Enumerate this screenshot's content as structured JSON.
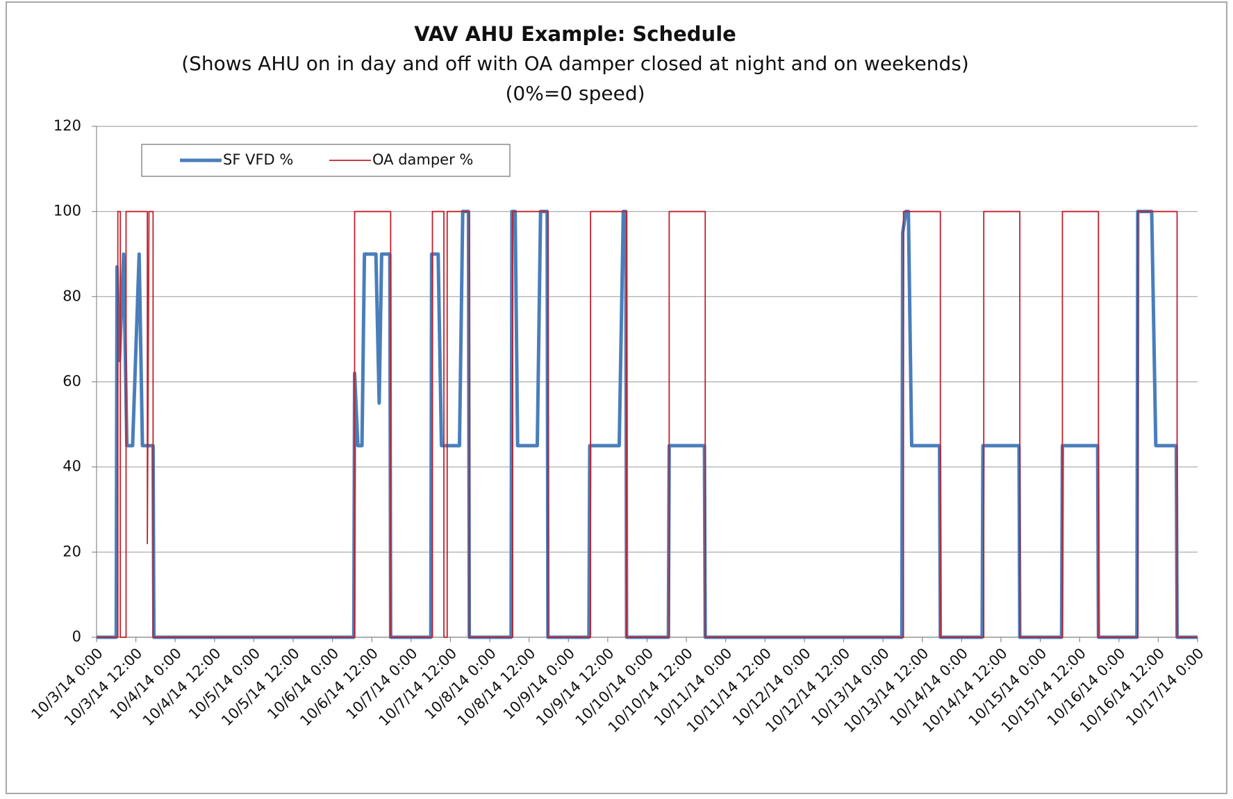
{
  "chart_data": {
    "type": "line",
    "title": "VAV AHU Example: Schedule",
    "subtitle": "(Shows AHU on in day and off with OA damper closed at night and on weekends)",
    "subtitle2": "(0%=0 speed)",
    "xlim": [
      "10/3/14 0:00",
      "10/17/14 0:00"
    ],
    "xticks": [
      "10/3/14 0:00",
      "10/3/14 12:00",
      "10/4/14 0:00",
      "10/4/14 12:00",
      "10/5/14 0:00",
      "10/5/14 12:00",
      "10/6/14 0:00",
      "10/6/14 12:00",
      "10/7/14 0:00",
      "10/7/14 12:00",
      "10/8/14 0:00",
      "10/8/14 12:00",
      "10/9/14 0:00",
      "10/9/14 12:00",
      "10/10/14 0:00",
      "10/10/14 12:00",
      "10/11/14 0:00",
      "10/11/14 12:00",
      "10/12/14 0:00",
      "10/12/14 12:00",
      "10/13/14 0:00",
      "10/13/14 12:00",
      "10/14/14 0:00",
      "10/14/14 12:00",
      "10/15/14 0:00",
      "10/15/14 12:00",
      "10/16/14 0:00",
      "10/16/14 12:00",
      "10/17/14 0:00"
    ],
    "ylim": [
      0,
      120
    ],
    "yticks": [
      0,
      20,
      40,
      60,
      80,
      100,
      120
    ],
    "grid": true,
    "legend": "top-left",
    "series": [
      {
        "name": "SF VFD %",
        "color": "#4a7ebb",
        "x": [
          "10/3/14 0:00",
          "10/3/14 6:00",
          "10/3/14 6:15",
          "10/3/14 7:00",
          "10/3/14 8:15",
          "10/3/14 9:15",
          "10/3/14 11:00",
          "10/3/14 13:00",
          "10/3/14 14:00",
          "10/3/14 17:15",
          "10/3/14 17:30",
          "10/6/14 6:30",
          "10/6/14 6:45",
          "10/6/14 7:45",
          "10/6/14 9:00",
          "10/6/14 9:45",
          "10/6/14 13:15",
          "10/6/14 14:15",
          "10/6/14 15:00",
          "10/6/14 17:30",
          "10/6/14 17:45",
          "10/7/14 6:00",
          "10/7/14 6:15",
          "10/7/14 8:15",
          "10/7/14 9:15",
          "10/7/14 14:45",
          "10/7/14 15:45",
          "10/7/14 17:30",
          "10/7/14 17:45",
          "10/8/14 6:30",
          "10/8/14 6:45",
          "10/8/14 7:45",
          "10/8/14 8:30",
          "10/8/14 14:30",
          "10/8/14 15:30",
          "10/8/14 17:30",
          "10/8/14 17:45",
          "10/9/14 6:15",
          "10/9/14 6:30",
          "10/9/14 15:30",
          "10/9/14 16:45",
          "10/9/14 17:30",
          "10/9/14 17:45",
          "10/10/14 6:30",
          "10/10/14 6:45",
          "10/10/14 17:30",
          "10/10/14 17:45",
          "10/13/14 5:45",
          "10/13/14 6:00",
          "10/13/14 7:00",
          "10/13/14 7:45",
          "10/13/14 8:45",
          "10/13/14 17:15",
          "10/13/14 17:30",
          "10/14/14 6:15",
          "10/14/14 6:30",
          "10/14/14 17:30",
          "10/14/14 17:45",
          "10/15/14 6:30",
          "10/15/14 6:45",
          "10/15/14 17:30",
          "10/15/14 17:45",
          "10/16/14 5:30",
          "10/16/14 5:45",
          "10/16/14 10:00",
          "10/16/14 11:15",
          "10/16/14 17:30",
          "10/16/14 17:45",
          "10/17/14 0:00"
        ],
        "values": [
          0,
          0,
          87,
          65,
          90,
          45,
          45,
          90,
          45,
          45,
          0,
          0,
          62,
          45,
          45,
          90,
          90,
          55,
          90,
          90,
          0,
          0,
          90,
          90,
          45,
          45,
          100,
          100,
          0,
          0,
          100,
          100,
          45,
          45,
          100,
          100,
          0,
          0,
          45,
          45,
          100,
          100,
          0,
          0,
          45,
          45,
          0,
          0,
          95,
          100,
          100,
          45,
          45,
          0,
          0,
          45,
          45,
          0,
          0,
          45,
          45,
          0,
          0,
          100,
          100,
          45,
          45,
          0,
          0
        ]
      },
      {
        "name": "OA damper %",
        "color": "#c0202a",
        "x": [
          "10/3/14 0:00",
          "10/3/14 6:30",
          "10/3/14 6:30",
          "10/3/14 7:15",
          "10/3/14 7:15",
          "10/3/14 9:00",
          "10/3/14 9:00",
          "10/3/14 15:30",
          "10/3/14 15:30",
          "10/3/14 16:00",
          "10/3/14 17:15",
          "10/3/14 17:15",
          "10/6/14 6:45",
          "10/6/14 6:45",
          "10/6/14 17:45",
          "10/6/14 17:45",
          "10/7/14 6:30",
          "10/7/14 6:30",
          "10/7/14 10:00",
          "10/7/14 10:00",
          "10/7/14 11:00",
          "10/7/14 11:00",
          "10/7/14 17:45",
          "10/7/14 17:45",
          "10/8/14 7:00",
          "10/8/14 7:00",
          "10/8/14 17:45",
          "10/8/14 17:45",
          "10/9/14 6:45",
          "10/9/14 6:45",
          "10/9/14 17:45",
          "10/9/14 17:45",
          "10/10/14 6:45",
          "10/10/14 6:45",
          "10/10/14 17:45",
          "10/10/14 17:45",
          "10/13/14 6:15",
          "10/13/14 6:15",
          "10/13/14 17:30",
          "10/13/14 17:30",
          "10/14/14 6:45",
          "10/14/14 6:45",
          "10/14/14 17:45",
          "10/14/14 17:45",
          "10/15/14 6:45",
          "10/15/14 6:45",
          "10/15/14 17:45",
          "10/15/14 17:45",
          "10/16/14 5:45",
          "10/16/14 5:45",
          "10/16/14 17:45",
          "10/16/14 17:45",
          "10/17/14 0:00"
        ],
        "values": [
          0,
          0,
          100,
          100,
          0,
          0,
          100,
          100,
          22,
          100,
          100,
          0,
          0,
          100,
          100,
          0,
          0,
          100,
          100,
          0,
          0,
          100,
          100,
          0,
          0,
          100,
          100,
          0,
          0,
          100,
          100,
          0,
          0,
          100,
          100,
          0,
          0,
          100,
          100,
          0,
          0,
          100,
          100,
          0,
          0,
          100,
          100,
          0,
          0,
          100,
          100,
          0,
          0
        ]
      }
    ]
  }
}
